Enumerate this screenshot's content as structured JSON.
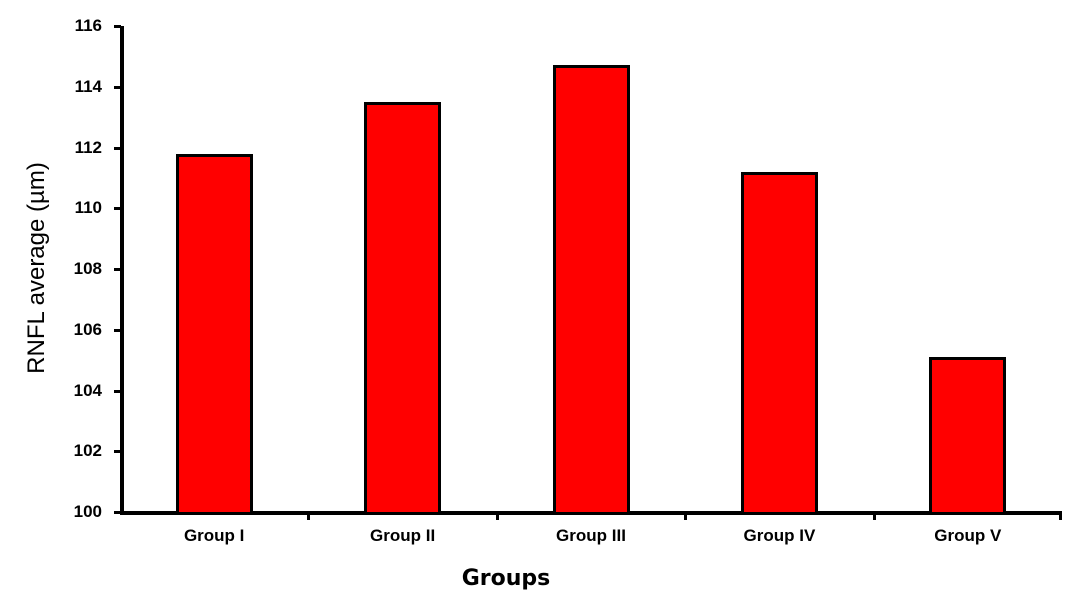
{
  "chart_data": {
    "type": "bar",
    "title": "",
    "xlabel": "Groups",
    "ylabel": "RNFL average (µm)",
    "categories": [
      "Group I",
      "Group II",
      "Group III",
      "Group IV",
      "Group V"
    ],
    "values": [
      111.8,
      113.5,
      114.7,
      111.2,
      105.1
    ],
    "ylim": [
      100,
      116
    ],
    "yticks": [
      100,
      102,
      104,
      106,
      108,
      110,
      112,
      114,
      116
    ],
    "grid": false,
    "legend": null,
    "bar_color": "#ff0000",
    "bar_edge_color": "#000000"
  }
}
